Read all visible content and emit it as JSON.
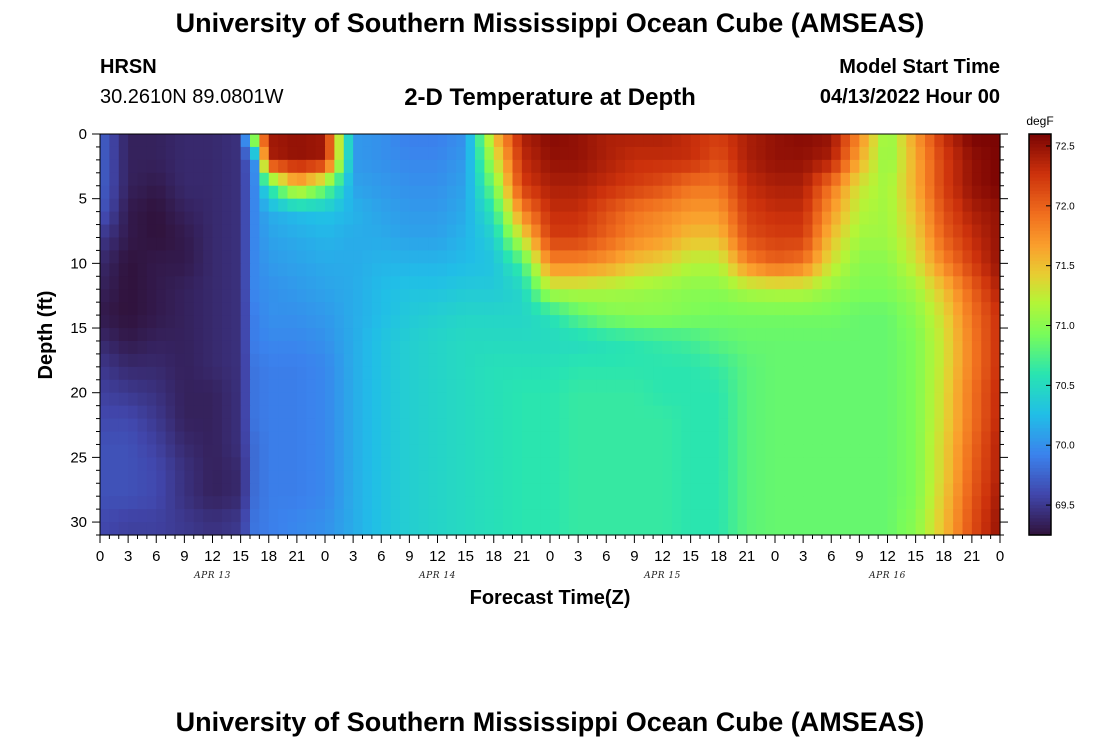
{
  "header": {
    "title": "University of Southern Mississippi Ocean Cube (AMSEAS)",
    "station_name": "HRSN",
    "station_coords": "30.2610N  89.0801W",
    "chart_title": "2-D Temperature at Depth",
    "start_label": "Model Start Time",
    "start_value": "04/13/2022 Hour 00"
  },
  "footer": {
    "title": "University of Southern Mississippi Ocean Cube (AMSEAS)"
  },
  "chart_data": {
    "type": "heatmap",
    "title": "2-D Temperature at Depth",
    "xlabel": "Forecast Time(Z)",
    "ylabel": "Depth (ft)",
    "x_hours": [
      0,
      96
    ],
    "x_tick_labels": [
      "0",
      "3",
      "6",
      "9",
      "12",
      "15",
      "18",
      "21",
      "0",
      "3",
      "6",
      "9",
      "12",
      "15",
      "18",
      "21",
      "0",
      "3",
      "6",
      "9",
      "12",
      "15",
      "18",
      "21",
      "0",
      "3",
      "6",
      "9",
      "12",
      "15",
      "18",
      "21",
      "0"
    ],
    "date_labels": [
      {
        "label": "APR 13",
        "hour": 12
      },
      {
        "label": "APR 14",
        "hour": 36
      },
      {
        "label": "APR 15",
        "hour": 60
      },
      {
        "label": "APR 16",
        "hour": 84
      }
    ],
    "ylim": [
      0,
      31
    ],
    "y_ticks": [
      0,
      5,
      10,
      15,
      20,
      25,
      30
    ],
    "colorbar": {
      "unit": "degF",
      "range": [
        69.25,
        72.6
      ],
      "ticks": [
        "72.5",
        "72.0",
        "71.5",
        "71.0",
        "70.5",
        "70.0",
        "69.5"
      ]
    },
    "approx_values_degF": {
      "hours": [
        0,
        3,
        6,
        9,
        12,
        15,
        16.5,
        18,
        21,
        24,
        27,
        30,
        33,
        36,
        39,
        42,
        45,
        48,
        51,
        54,
        57,
        60,
        63,
        66,
        69,
        72,
        75,
        78,
        81,
        84,
        87,
        90,
        93,
        96
      ],
      "depths": [
        0,
        2,
        4,
        6,
        8,
        10,
        12,
        14,
        16,
        18,
        20,
        22,
        24,
        26,
        28,
        30,
        31
      ],
      "values": [
        [
          69.75,
          69.35,
          69.35,
          69.4,
          69.4,
          69.45,
          71.3,
          72.45,
          72.5,
          72.45,
          70.05,
          70.0,
          69.9,
          69.9,
          70.0,
          71.5,
          72.4,
          72.55,
          72.5,
          72.4,
          72.4,
          72.4,
          72.3,
          72.2,
          72.4,
          72.5,
          72.55,
          72.5,
          71.8,
          71.0,
          71.7,
          72.3,
          72.6,
          72.6
        ],
        [
          69.75,
          69.35,
          69.35,
          69.4,
          69.4,
          69.45,
          70.0,
          72.4,
          72.5,
          72.45,
          70.05,
          70.0,
          69.95,
          69.95,
          70.05,
          71.2,
          72.3,
          72.5,
          72.5,
          72.4,
          72.3,
          72.3,
          72.3,
          72.1,
          72.4,
          72.5,
          72.5,
          72.4,
          71.6,
          71.0,
          71.6,
          72.2,
          72.5,
          72.6
        ],
        [
          69.75,
          69.35,
          69.3,
          69.4,
          69.4,
          69.45,
          69.95,
          70.6,
          71.5,
          70.95,
          70.1,
          70.05,
          70.0,
          70.0,
          70.1,
          70.9,
          72.2,
          72.4,
          72.4,
          72.3,
          72.2,
          72.1,
          71.9,
          71.9,
          72.3,
          72.4,
          72.4,
          71.9,
          71.3,
          71.1,
          71.6,
          72.2,
          72.5,
          72.6
        ],
        [
          69.7,
          69.3,
          69.25,
          69.35,
          69.4,
          69.45,
          69.95,
          70.15,
          70.25,
          70.3,
          70.2,
          70.1,
          70.05,
          70.05,
          70.15,
          70.6,
          71.8,
          72.3,
          72.3,
          72.1,
          71.9,
          71.8,
          71.7,
          71.7,
          72.2,
          72.3,
          72.3,
          71.7,
          71.2,
          71.1,
          71.5,
          72.1,
          72.4,
          72.5
        ],
        [
          69.5,
          69.3,
          69.25,
          69.3,
          69.4,
          69.45,
          69.95,
          70.1,
          70.15,
          70.2,
          70.15,
          70.15,
          70.1,
          70.1,
          70.2,
          70.4,
          71.3,
          72.2,
          72.2,
          72.0,
          71.8,
          71.7,
          71.5,
          71.5,
          72.1,
          72.2,
          72.2,
          71.5,
          71.1,
          71.1,
          71.4,
          72.0,
          72.3,
          72.5
        ],
        [
          69.4,
          69.25,
          69.3,
          69.3,
          69.4,
          69.45,
          69.95,
          70.05,
          70.1,
          70.15,
          70.15,
          70.2,
          70.2,
          70.2,
          70.25,
          70.3,
          70.7,
          71.8,
          71.8,
          71.7,
          71.5,
          71.4,
          71.2,
          71.2,
          71.8,
          72.0,
          71.9,
          71.3,
          71.0,
          71.0,
          71.3,
          71.8,
          72.2,
          72.5
        ],
        [
          69.35,
          69.25,
          69.3,
          69.35,
          69.4,
          69.45,
          69.95,
          70.0,
          70.05,
          70.1,
          70.15,
          70.25,
          70.3,
          70.3,
          70.35,
          70.35,
          70.45,
          71.2,
          71.2,
          71.15,
          71.1,
          71.05,
          71.0,
          71.0,
          71.15,
          71.2,
          71.2,
          71.05,
          70.95,
          70.95,
          71.1,
          71.5,
          72.0,
          72.4
        ],
        [
          69.3,
          69.25,
          69.3,
          69.35,
          69.4,
          69.45,
          69.9,
          70.0,
          70.0,
          70.05,
          70.15,
          70.25,
          70.35,
          70.4,
          70.45,
          70.45,
          70.45,
          70.55,
          70.8,
          70.95,
          71.0,
          71.0,
          70.95,
          70.9,
          70.9,
          70.9,
          70.9,
          70.9,
          70.85,
          70.85,
          71.0,
          71.35,
          71.9,
          72.3
        ],
        [
          69.4,
          69.3,
          69.35,
          69.35,
          69.4,
          69.45,
          69.9,
          69.95,
          69.95,
          70.0,
          70.15,
          70.3,
          70.4,
          70.45,
          70.5,
          70.5,
          70.5,
          70.5,
          70.5,
          70.55,
          70.6,
          70.65,
          70.7,
          70.8,
          70.85,
          70.85,
          70.85,
          70.85,
          70.85,
          70.85,
          70.95,
          71.3,
          71.85,
          72.3
        ],
        [
          69.5,
          69.4,
          69.4,
          69.35,
          69.4,
          69.45,
          69.85,
          69.9,
          69.9,
          69.95,
          70.15,
          70.3,
          70.4,
          70.45,
          70.5,
          70.55,
          70.55,
          70.55,
          70.6,
          70.6,
          70.6,
          70.6,
          70.6,
          70.65,
          70.8,
          70.85,
          70.85,
          70.85,
          70.85,
          70.85,
          70.95,
          71.3,
          71.85,
          72.3
        ],
        [
          69.55,
          69.5,
          69.45,
          69.35,
          69.35,
          69.45,
          69.85,
          69.9,
          69.9,
          69.95,
          70.15,
          70.3,
          70.4,
          70.45,
          70.5,
          70.55,
          70.6,
          70.6,
          70.65,
          70.65,
          70.65,
          70.6,
          70.6,
          70.6,
          70.8,
          70.85,
          70.85,
          70.85,
          70.85,
          70.85,
          70.95,
          71.35,
          71.9,
          72.35
        ],
        [
          69.6,
          69.6,
          69.5,
          69.35,
          69.35,
          69.45,
          69.85,
          69.9,
          69.9,
          69.95,
          70.15,
          70.3,
          70.4,
          70.45,
          70.5,
          70.55,
          70.6,
          70.6,
          70.65,
          70.65,
          70.65,
          70.65,
          70.6,
          70.6,
          70.8,
          70.85,
          70.85,
          70.85,
          70.85,
          70.85,
          70.95,
          71.35,
          71.9,
          72.35
        ],
        [
          69.65,
          69.65,
          69.55,
          69.4,
          69.35,
          69.45,
          69.8,
          69.9,
          69.9,
          69.95,
          70.15,
          70.3,
          70.4,
          70.45,
          70.5,
          70.55,
          70.6,
          70.6,
          70.65,
          70.65,
          70.65,
          70.65,
          70.6,
          70.6,
          70.8,
          70.85,
          70.85,
          70.85,
          70.85,
          70.85,
          70.95,
          71.4,
          71.95,
          72.4
        ],
        [
          69.65,
          69.65,
          69.6,
          69.45,
          69.35,
          69.4,
          69.8,
          69.9,
          69.9,
          69.95,
          70.15,
          70.3,
          70.4,
          70.45,
          70.5,
          70.55,
          70.6,
          70.6,
          70.65,
          70.65,
          70.65,
          70.65,
          70.6,
          70.6,
          70.8,
          70.85,
          70.85,
          70.85,
          70.85,
          70.85,
          70.95,
          71.4,
          72.0,
          72.4
        ],
        [
          69.65,
          69.65,
          69.6,
          69.45,
          69.35,
          69.4,
          69.8,
          69.9,
          69.9,
          69.95,
          70.15,
          70.3,
          70.4,
          70.45,
          70.5,
          70.55,
          70.6,
          70.6,
          70.65,
          70.65,
          70.65,
          70.65,
          70.6,
          70.6,
          70.8,
          70.85,
          70.85,
          70.85,
          70.85,
          70.85,
          70.95,
          71.45,
          72.05,
          72.45
        ],
        [
          69.6,
          69.55,
          69.55,
          69.5,
          69.45,
          69.5,
          69.85,
          69.9,
          69.95,
          70.0,
          70.15,
          70.3,
          70.4,
          70.45,
          70.5,
          70.55,
          70.6,
          70.6,
          70.65,
          70.65,
          70.65,
          70.65,
          70.6,
          70.6,
          70.8,
          70.85,
          70.85,
          70.85,
          70.85,
          70.85,
          71.0,
          71.5,
          72.1,
          72.5
        ],
        [
          69.6,
          69.55,
          69.55,
          69.5,
          69.45,
          69.5,
          69.85,
          69.9,
          69.95,
          70.0,
          70.15,
          70.3,
          70.4,
          70.45,
          70.5,
          70.55,
          70.6,
          70.6,
          70.65,
          70.65,
          70.65,
          70.65,
          70.6,
          70.6,
          70.8,
          70.85,
          70.85,
          70.85,
          70.85,
          70.85,
          71.0,
          71.5,
          72.1,
          72.5
        ]
      ]
    }
  }
}
